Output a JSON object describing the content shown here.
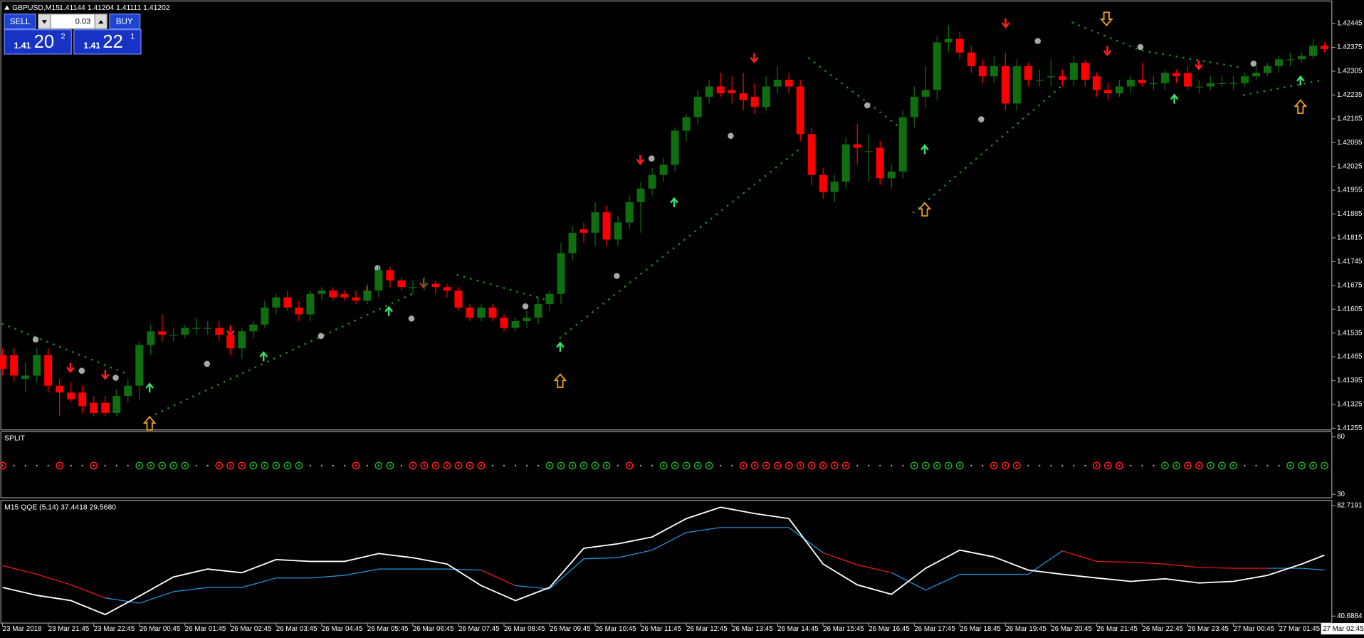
{
  "header": {
    "symbol": "GBPUSD,M15",
    "ohlc": "1.41144 1.41204 1.41111 1.41202"
  },
  "trade_panel": {
    "sell": "SELL",
    "buy": "BUY",
    "volume": "0.03",
    "bid": {
      "big": "1.41",
      "pips": "20",
      "point": "2"
    },
    "ask": {
      "big": "1.41",
      "pips": "22",
      "point": "1"
    }
  },
  "chart_data": [
    {
      "type": "candlestick",
      "up_color": "#0f6e0f",
      "down_color": "#ff0000",
      "ylim": [
        1.4125,
        1.42509
      ],
      "yticks": [
        1.41255,
        1.41325,
        1.41395,
        1.41465,
        1.41535,
        1.41605,
        1.41675,
        1.41745,
        1.41815,
        1.41885,
        1.41955,
        1.42025,
        1.42095,
        1.42165,
        1.42235,
        1.42305,
        1.42375,
        1.42445
      ],
      "categories": [
        "23 Mar 2018",
        null,
        null,
        null,
        "23 Mar 21:45",
        null,
        null,
        null,
        "23 Mar 22:45",
        null,
        null,
        null,
        "26 Mar 00:45",
        null,
        null,
        null,
        "26 Mar 01:45",
        null,
        null,
        null,
        "26 Mar 02:45",
        null,
        null,
        null,
        "26 Mar 03:45",
        null,
        null,
        null,
        "26 Mar 04:45",
        null,
        null,
        null,
        "26 Mar 05:45",
        null,
        null,
        null,
        "26 Mar 06:45",
        null,
        null,
        null,
        "26 Mar 07:45",
        null,
        null,
        null,
        "26 Mar 08:45",
        null,
        null,
        null,
        "26 Mar 09:45",
        null,
        null,
        null,
        "26 Mar 10:45",
        null,
        null,
        null,
        "26 Mar 11:45",
        null,
        null,
        null,
        "26 Mar 12:45",
        null,
        null,
        null,
        "26 Mar 13:45",
        null,
        null,
        null,
        "26 Mar 14:45",
        null,
        null,
        null,
        "26 Mar 15:45",
        null,
        null,
        null,
        "26 Mar 16:45",
        null,
        null,
        null,
        "26 Mar 17:45",
        null,
        null,
        null,
        "26 Mar 18:45",
        null,
        null,
        null,
        "26 Mar 19:45",
        null,
        null,
        null,
        "26 Mar 20:45",
        null,
        null,
        null,
        "26 Mar 21:45",
        null,
        null,
        null,
        "26 Mar 22:45",
        null,
        null,
        null,
        "26 Mar 23:45",
        null,
        null,
        null,
        "27 Mar 00:45",
        null,
        null,
        null,
        "27 Mar 01:45",
        null,
        null,
        null,
        "27 Mar 02:45"
      ],
      "candles": [
        [
          1.4147,
          1.4149,
          1.4141,
          1.4143
        ],
        [
          1.4147,
          1.4149,
          1.4139,
          1.4141
        ],
        [
          1.414,
          1.4145,
          1.4136,
          1.4141
        ],
        [
          1.4141,
          1.4149,
          1.4139,
          1.4147
        ],
        [
          1.4147,
          1.4149,
          1.4136,
          1.4138
        ],
        [
          1.4138,
          1.414,
          1.4129,
          1.4136
        ],
        [
          1.4136,
          1.4139,
          1.4133,
          1.4134
        ],
        [
          1.4136,
          1.4138,
          1.413,
          1.4132
        ],
        [
          1.4133,
          1.4135,
          1.4129,
          1.413
        ],
        [
          1.4133,
          1.4135,
          1.4129,
          1.413
        ],
        [
          1.413,
          1.4137,
          1.4129,
          1.4135
        ],
        [
          1.4135,
          1.414,
          1.4133,
          1.4138
        ],
        [
          1.4138,
          1.4151,
          1.4134,
          1.415
        ],
        [
          1.415,
          1.4156,
          1.4147,
          1.4154
        ],
        [
          1.4154,
          1.4159,
          1.4151,
          1.4153
        ],
        [
          1.4153,
          1.4155,
          1.4151,
          1.4153
        ],
        [
          1.4153,
          1.4156,
          1.4152,
          1.4155
        ],
        [
          1.4155,
          1.4158,
          1.4153,
          1.4155
        ],
        [
          1.4155,
          1.4157,
          1.4153,
          1.4155
        ],
        [
          1.4155,
          1.4157,
          1.4151,
          1.4153
        ],
        [
          1.4153,
          1.4156,
          1.4147,
          1.4149
        ],
        [
          1.4149,
          1.4155,
          1.4146,
          1.4154
        ],
        [
          1.4154,
          1.4157,
          1.4152,
          1.4156
        ],
        [
          1.4156,
          1.4163,
          1.4155,
          1.4161
        ],
        [
          1.4161,
          1.4165,
          1.4159,
          1.4164
        ],
        [
          1.4164,
          1.4166,
          1.416,
          1.4161
        ],
        [
          1.4161,
          1.4163,
          1.4157,
          1.4159
        ],
        [
          1.4159,
          1.4166,
          1.4157,
          1.4165
        ],
        [
          1.4165,
          1.4167,
          1.4163,
          1.4166
        ],
        [
          1.4166,
          1.4167,
          1.4163,
          1.4164
        ],
        [
          1.4165,
          1.4166,
          1.4163,
          1.4164
        ],
        [
          1.4164,
          1.4166,
          1.4162,
          1.4163
        ],
        [
          1.4163,
          1.4168,
          1.4162,
          1.4166
        ],
        [
          1.4166,
          1.4173,
          1.4164,
          1.4172
        ],
        [
          1.4172,
          1.4173,
          1.4167,
          1.4169
        ],
        [
          1.4169,
          1.417,
          1.4166,
          1.4167
        ],
        [
          1.4167,
          1.4169,
          1.4165,
          1.4167
        ],
        [
          1.4168,
          1.417,
          1.4166,
          1.4168
        ],
        [
          1.4168,
          1.4169,
          1.4165,
          1.4167
        ],
        [
          1.4167,
          1.4168,
          1.4164,
          1.4166
        ],
        [
          1.4166,
          1.4167,
          1.416,
          1.4161
        ],
        [
          1.4161,
          1.4162,
          1.4157,
          1.4158
        ],
        [
          1.4158,
          1.4162,
          1.4157,
          1.4161
        ],
        [
          1.4161,
          1.4162,
          1.4157,
          1.4158
        ],
        [
          1.4158,
          1.4159,
          1.4154,
          1.4155
        ],
        [
          1.4155,
          1.4158,
          1.4154,
          1.4157
        ],
        [
          1.4157,
          1.416,
          1.4155,
          1.4158
        ],
        [
          1.4158,
          1.4164,
          1.4156,
          1.4162
        ],
        [
          1.4162,
          1.4166,
          1.416,
          1.4165
        ],
        [
          1.4165,
          1.418,
          1.4162,
          1.4177
        ],
        [
          1.4177,
          1.4185,
          1.4175,
          1.4183
        ],
        [
          1.4184,
          1.4186,
          1.418,
          1.4183
        ],
        [
          1.4183,
          1.4192,
          1.4179,
          1.4189
        ],
        [
          1.4189,
          1.4191,
          1.4179,
          1.4181
        ],
        [
          1.4181,
          1.4188,
          1.4179,
          1.4186
        ],
        [
          1.4186,
          1.4194,
          1.4184,
          1.4192
        ],
        [
          1.4192,
          1.4198,
          1.4183,
          1.4196
        ],
        [
          1.4196,
          1.4202,
          1.4194,
          1.42
        ],
        [
          1.42,
          1.4205,
          1.4198,
          1.4203
        ],
        [
          1.4203,
          1.4214,
          1.4201,
          1.4213
        ],
        [
          1.4213,
          1.4218,
          1.421,
          1.4217
        ],
        [
          1.4217,
          1.4225,
          1.4215,
          1.4223
        ],
        [
          1.4223,
          1.4228,
          1.4221,
          1.4226
        ],
        [
          1.4226,
          1.423,
          1.4223,
          1.4224
        ],
        [
          1.4225,
          1.4229,
          1.4221,
          1.4224
        ],
        [
          1.4224,
          1.423,
          1.4219,
          1.4222
        ],
        [
          1.4223,
          1.4227,
          1.4218,
          1.422
        ],
        [
          1.422,
          1.4229,
          1.4219,
          1.4226
        ],
        [
          1.4226,
          1.4232,
          1.4224,
          1.4228
        ],
        [
          1.4228,
          1.423,
          1.4224,
          1.4226
        ],
        [
          1.4226,
          1.4228,
          1.421,
          1.4212
        ],
        [
          1.4212,
          1.4214,
          1.4197,
          1.42
        ],
        [
          1.42,
          1.4202,
          1.4193,
          1.4195
        ],
        [
          1.4195,
          1.42,
          1.4192,
          1.4198
        ],
        [
          1.4198,
          1.4211,
          1.4196,
          1.4209
        ],
        [
          1.4209,
          1.4215,
          1.4203,
          1.4208
        ],
        [
          1.4207,
          1.4212,
          1.4198,
          1.4207
        ],
        [
          1.4208,
          1.421,
          1.4197,
          1.4199
        ],
        [
          1.4199,
          1.4203,
          1.4196,
          1.4201
        ],
        [
          1.4201,
          1.4219,
          1.4199,
          1.4217
        ],
        [
          1.4217,
          1.4226,
          1.4214,
          1.4223
        ],
        [
          1.4223,
          1.4232,
          1.422,
          1.4225
        ],
        [
          1.4225,
          1.4241,
          1.4222,
          1.4239
        ],
        [
          1.4239,
          1.4244,
          1.4236,
          1.424
        ],
        [
          1.424,
          1.4242,
          1.4234,
          1.4236
        ],
        [
          1.4236,
          1.4238,
          1.423,
          1.4232
        ],
        [
          1.4232,
          1.4234,
          1.4227,
          1.4229
        ],
        [
          1.4229,
          1.4235,
          1.4227,
          1.4232
        ],
        [
          1.4232,
          1.4236,
          1.4219,
          1.4221
        ],
        [
          1.4221,
          1.4234,
          1.4219,
          1.4232
        ],
        [
          1.4232,
          1.4233,
          1.4226,
          1.4228
        ],
        [
          1.4228,
          1.4231,
          1.4226,
          1.4228
        ],
        [
          1.4229,
          1.4234,
          1.4226,
          1.4229
        ],
        [
          1.4229,
          1.4231,
          1.4226,
          1.4228
        ],
        [
          1.4228,
          1.4235,
          1.4226,
          1.4233
        ],
        [
          1.4233,
          1.4234,
          1.4226,
          1.4228
        ],
        [
          1.4229,
          1.423,
          1.4223,
          1.4225
        ],
        [
          1.4225,
          1.4227,
          1.4222,
          1.4224
        ],
        [
          1.4224,
          1.4228,
          1.4223,
          1.4226
        ],
        [
          1.4226,
          1.4229,
          1.4224,
          1.4228
        ],
        [
          1.4228,
          1.4233,
          1.4226,
          1.4227
        ],
        [
          1.4227,
          1.4229,
          1.4225,
          1.4227
        ],
        [
          1.4227,
          1.4231,
          1.4225,
          1.423
        ],
        [
          1.423,
          1.4231,
          1.4227,
          1.4229
        ],
        [
          1.423,
          1.4232,
          1.4225,
          1.4226
        ],
        [
          1.4226,
          1.4228,
          1.4224,
          1.4226
        ],
        [
          1.4226,
          1.4229,
          1.4225,
          1.4227
        ],
        [
          1.4227,
          1.4229,
          1.4226,
          1.4227
        ],
        [
          1.4227,
          1.4229,
          1.4225,
          1.4227
        ],
        [
          1.4227,
          1.423,
          1.4226,
          1.4229
        ],
        [
          1.4229,
          1.4232,
          1.4228,
          1.423
        ],
        [
          1.423,
          1.4233,
          1.4229,
          1.4232
        ],
        [
          1.4232,
          1.4235,
          1.423,
          1.4234
        ],
        [
          1.4234,
          1.4236,
          1.4232,
          1.4234
        ],
        [
          1.4234,
          1.4236,
          1.4233,
          1.4235
        ],
        [
          1.4235,
          1.424,
          1.4234,
          1.4238
        ],
        [
          1.4238,
          1.4239,
          1.4236,
          1.4237
        ]
      ]
    },
    {
      "type": "signals",
      "title": "SPLIT",
      "ylim": [
        30,
        60
      ],
      "yticks": [
        30,
        60
      ],
      "up_color": "#1fae1f",
      "down_color": "#ff2020"
    },
    {
      "type": "line",
      "title": "M15  QQE (5,14) 37.4418 29.5680",
      "ylim": [
        40.6884,
        82.7191
      ],
      "yticks": [
        40.6884,
        82.7191
      ],
      "x": [
        0,
        3,
        6,
        9,
        12,
        15,
        18,
        21,
        24,
        27,
        30,
        33,
        36,
        39,
        42,
        45,
        48,
        51,
        54,
        57,
        60,
        63,
        66,
        69,
        72,
        75,
        78,
        81,
        84,
        87,
        90,
        93,
        96,
        99,
        102,
        105,
        108,
        111,
        114,
        116
      ],
      "series": [
        {
          "color": "#ffffff",
          "values": [
            51.6,
            48.6,
            46.6,
            41.3,
            48.3,
            55.6,
            58.6,
            57.2,
            62.2,
            61.5,
            61.5,
            64.5,
            62.9,
            60.5,
            52.3,
            46.6,
            51.6,
            66.5,
            68.2,
            70.8,
            77.8,
            82.1,
            79.7,
            77.8,
            60.5,
            52.6,
            49.0,
            58.9,
            65.8,
            63.2,
            58.2,
            56.6,
            55.2,
            53.9,
            54.9,
            53.3,
            53.9,
            56.2,
            60.5,
            63.9
          ]
        },
        {
          "color": "#ff1a1a",
          "color_below": "#1e9be8",
          "values": [
            59.9,
            56.6,
            52.6,
            47.6,
            45.6,
            50.0,
            51.6,
            51.6,
            55.2,
            55.2,
            56.2,
            58.6,
            58.6,
            58.6,
            58.2,
            52.3,
            51.0,
            62.5,
            62.9,
            65.8,
            72.5,
            74.4,
            74.4,
            74.4,
            64.8,
            60.2,
            57.2,
            50.6,
            56.6,
            56.6,
            56.6,
            65.5,
            61.5,
            61.2,
            60.5,
            59.2,
            58.9,
            58.9,
            58.9,
            58.2
          ]
        }
      ]
    }
  ]
}
